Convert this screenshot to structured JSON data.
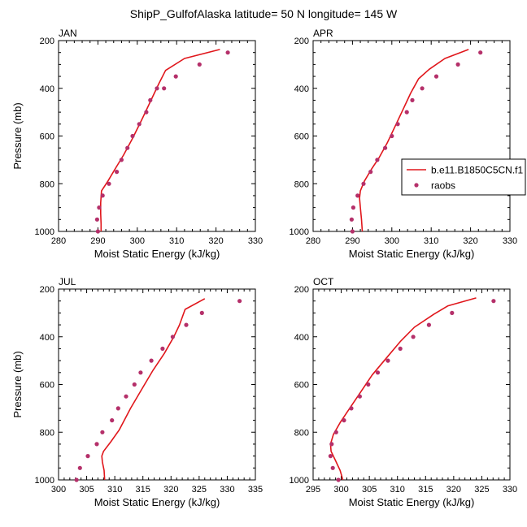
{
  "title": "ShipP_GulfofAlaska  latitude= 50 N longitude= 145 W",
  "legend": {
    "line_label": "b.e11.B1850C5CN.f1",
    "marker_label": "raobs"
  },
  "colors": {
    "model_line": "#e0161b",
    "obs_marker": "#b5306a"
  },
  "chart_data": [
    {
      "type": "line",
      "panel": "JAN",
      "xlabel": "Moist Static Energy (kJ/kg)",
      "ylabel": "Pressure (mb)",
      "xlim": [
        280,
        330
      ],
      "ylim": [
        1000,
        200
      ],
      "xticks": [
        280,
        290,
        300,
        310,
        320,
        330
      ],
      "yticks": [
        200,
        400,
        600,
        800,
        1000
      ],
      "grid": false,
      "series": [
        {
          "name": "b.e11.B1850C5CN.f1",
          "kind": "line",
          "points": [
            [
              290.8,
              1000
            ],
            [
              290.8,
              970
            ],
            [
              290.7,
              925
            ],
            [
              290.7,
              880
            ],
            [
              290.9,
              830
            ],
            [
              292.5,
              790
            ],
            [
              294.3,
              740
            ],
            [
              296.5,
              680
            ],
            [
              298.8,
              610
            ],
            [
              301.2,
              530
            ],
            [
              303.5,
              450
            ],
            [
              305.5,
              380
            ],
            [
              307.2,
              325
            ],
            [
              312,
              275
            ],
            [
              321,
              237
            ]
          ]
        },
        {
          "name": "raobs",
          "kind": "marker",
          "points": [
            [
              290,
              1000
            ],
            [
              289.8,
              950
            ],
            [
              290.3,
              900
            ],
            [
              291.2,
              850
            ],
            [
              292.8,
              800
            ],
            [
              294.8,
              750
            ],
            [
              296,
              700
            ],
            [
              297.5,
              650
            ],
            [
              298.8,
              600
            ],
            [
              300.5,
              550
            ],
            [
              302.3,
              500
            ],
            [
              303.3,
              450
            ],
            [
              305,
              400
            ],
            [
              306.8,
              400
            ],
            [
              309.8,
              350
            ],
            [
              315.8,
              300
            ],
            [
              323,
              250
            ]
          ]
        }
      ]
    },
    {
      "type": "line",
      "panel": "APR",
      "xlabel": "Moist Static Energy (kJ/kg)",
      "ylabel": "",
      "xlim": [
        280,
        330
      ],
      "ylim": [
        1000,
        200
      ],
      "xticks": [
        280,
        290,
        300,
        310,
        320,
        330
      ],
      "yticks": [
        200,
        400,
        600,
        800,
        1000
      ],
      "grid": false,
      "series": [
        {
          "name": "b.e11.B1850C5CN.f1",
          "kind": "line",
          "points": [
            [
              292.5,
              1000
            ],
            [
              292.3,
              950
            ],
            [
              292,
              900
            ],
            [
              291.8,
              860
            ],
            [
              292,
              830
            ],
            [
              293,
              790
            ],
            [
              294.8,
              740
            ],
            [
              296.8,
              690
            ],
            [
              298.8,
              630
            ],
            [
              300.8,
              560
            ],
            [
              302.8,
              490
            ],
            [
              304.8,
              420
            ],
            [
              306.8,
              360
            ],
            [
              309.5,
              320
            ],
            [
              313.5,
              275
            ],
            [
              319.5,
              237
            ]
          ]
        },
        {
          "name": "raobs",
          "kind": "marker",
          "points": [
            [
              290,
              1000
            ],
            [
              289.8,
              950
            ],
            [
              290.2,
              900
            ],
            [
              291.3,
              850
            ],
            [
              292.8,
              800
            ],
            [
              294.6,
              750
            ],
            [
              296.3,
              700
            ],
            [
              298.3,
              650
            ],
            [
              300,
              600
            ],
            [
              301.5,
              550
            ],
            [
              303.8,
              500
            ],
            [
              305.2,
              450
            ],
            [
              307.7,
              400
            ],
            [
              311.3,
              350
            ],
            [
              316.8,
              300
            ],
            [
              322.5,
              250
            ]
          ]
        }
      ]
    },
    {
      "type": "line",
      "panel": "JUL",
      "xlabel": "Moist Static Energy (kJ/kg)",
      "ylabel": "Pressure (mb)",
      "xlim": [
        300,
        335
      ],
      "ylim": [
        1000,
        200
      ],
      "xticks": [
        300,
        305,
        310,
        315,
        320,
        325,
        330,
        335
      ],
      "yticks": [
        200,
        400,
        600,
        800,
        1000
      ],
      "grid": false,
      "series": [
        {
          "name": "b.e11.B1850C5CN.f1",
          "kind": "line",
          "points": [
            [
              308.2,
              1000
            ],
            [
              308.1,
              960
            ],
            [
              307.8,
              925
            ],
            [
              307.7,
              900
            ],
            [
              308,
              880
            ],
            [
              309.3,
              840
            ],
            [
              310.8,
              790
            ],
            [
              312.8,
              700
            ],
            [
              314.8,
              620
            ],
            [
              316.8,
              540
            ],
            [
              318.8,
              470
            ],
            [
              320.5,
              400
            ],
            [
              321.5,
              350
            ],
            [
              322.5,
              285
            ],
            [
              326,
              240
            ]
          ]
        },
        {
          "name": "raobs",
          "kind": "marker",
          "points": [
            [
              303.2,
              1000
            ],
            [
              303.8,
              950
            ],
            [
              305.2,
              900
            ],
            [
              306.8,
              850
            ],
            [
              307.8,
              800
            ],
            [
              309.5,
              750
            ],
            [
              310.6,
              700
            ],
            [
              312,
              650
            ],
            [
              313.5,
              600
            ],
            [
              314.6,
              550
            ],
            [
              316.5,
              500
            ],
            [
              318.5,
              450
            ],
            [
              320.3,
              400
            ],
            [
              322.7,
              350
            ],
            [
              325.5,
              300
            ],
            [
              332.2,
              250
            ]
          ]
        }
      ]
    },
    {
      "type": "line",
      "panel": "OCT",
      "xlabel": "Moist Static Energy (kJ/kg)",
      "ylabel": "",
      "xlim": [
        295,
        330
      ],
      "ylim": [
        1000,
        200
      ],
      "xticks": [
        295,
        300,
        305,
        310,
        315,
        320,
        325,
        330
      ],
      "yticks": [
        200,
        400,
        600,
        800,
        1000
      ],
      "grid": false,
      "series": [
        {
          "name": "b.e11.B1850C5CN.f1",
          "kind": "line",
          "points": [
            [
              300.3,
              1000
            ],
            [
              299.8,
              960
            ],
            [
              299,
              920
            ],
            [
              298.2,
              880
            ],
            [
              298.1,
              850
            ],
            [
              298.6,
              810
            ],
            [
              299.8,
              760
            ],
            [
              301.5,
              700
            ],
            [
              303.5,
              630
            ],
            [
              305.5,
              560
            ],
            [
              308,
              490
            ],
            [
              310.5,
              420
            ],
            [
              313,
              360
            ],
            [
              316.5,
              305
            ],
            [
              319,
              270
            ],
            [
              324,
              237
            ]
          ]
        },
        {
          "name": "raobs",
          "kind": "marker",
          "points": [
            [
              299.5,
              1000
            ],
            [
              298.5,
              950
            ],
            [
              298.1,
              900
            ],
            [
              298.3,
              850
            ],
            [
              299.1,
              800
            ],
            [
              300.5,
              750
            ],
            [
              301.8,
              700
            ],
            [
              303.3,
              650
            ],
            [
              304.8,
              600
            ],
            [
              306.5,
              550
            ],
            [
              308.3,
              500
            ],
            [
              310.5,
              450
            ],
            [
              312.8,
              400
            ],
            [
              315.6,
              350
            ],
            [
              319.7,
              300
            ],
            [
              327.1,
              250
            ]
          ]
        }
      ]
    }
  ]
}
